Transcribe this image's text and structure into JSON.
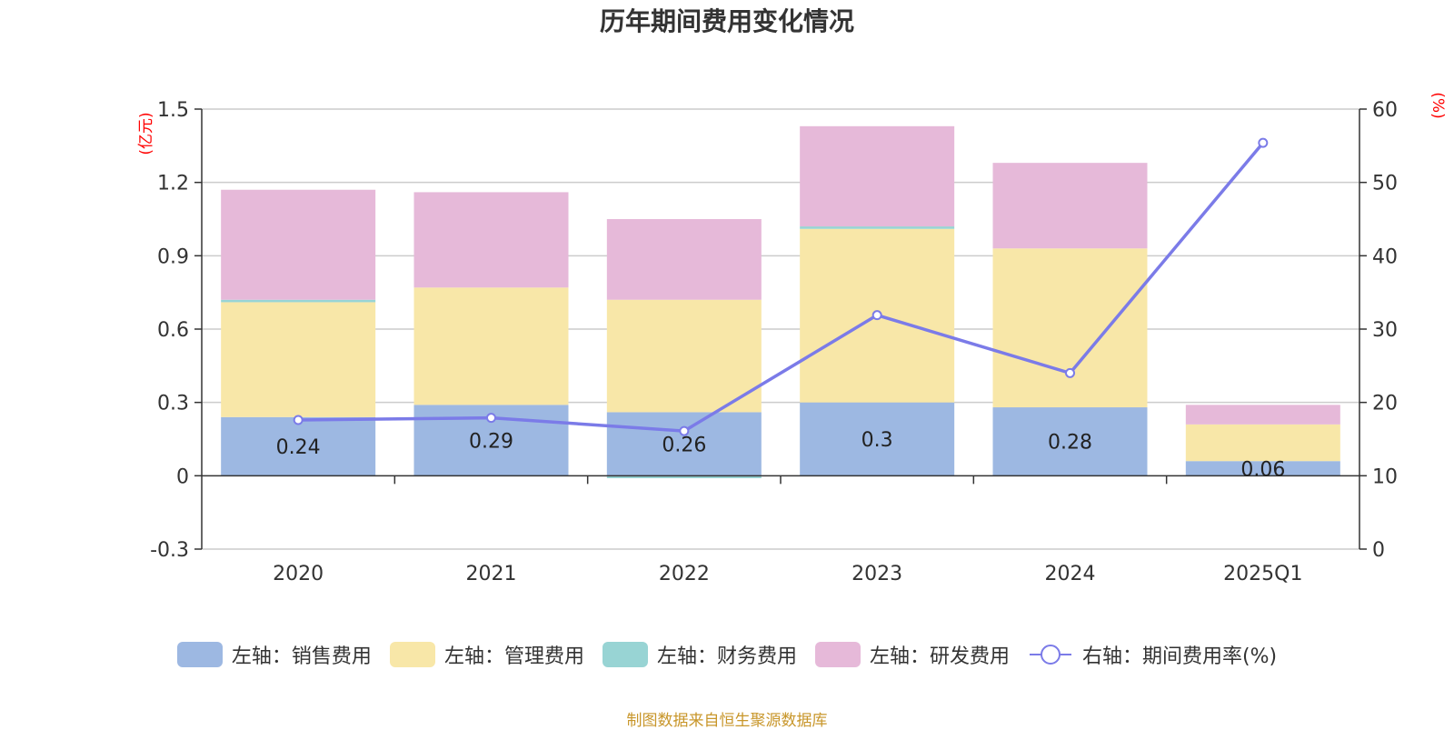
{
  "chart_data": {
    "type": "bar",
    "title": "历年期间费用变化情况",
    "categories": [
      "2020",
      "2021",
      "2022",
      "2023",
      "2024",
      "2025Q1"
    ],
    "left_axis": {
      "unit": "(亿元)",
      "min": -0.3,
      "max": 1.5,
      "ticks": [
        -0.3,
        0,
        0.3,
        0.6,
        0.9,
        1.2,
        1.5
      ],
      "tick_labels": [
        "-0.3",
        "0",
        "0.3",
        "0.6",
        "0.9",
        "1.2",
        "1.5"
      ]
    },
    "right_axis": {
      "unit": "(%)",
      "min": 0,
      "max": 60,
      "ticks": [
        0,
        10,
        20,
        30,
        40,
        50,
        60
      ],
      "tick_labels": [
        "0",
        "10",
        "20",
        "30",
        "40",
        "50",
        "60"
      ]
    },
    "series": [
      {
        "name": "左轴：销售费用",
        "type": "bar",
        "color": "#9db8e2",
        "values": [
          0.24,
          0.29,
          0.26,
          0.3,
          0.28,
          0.06
        ],
        "labels": [
          "0.24",
          "0.29",
          "0.26",
          "0.3",
          "0.28",
          "0.06"
        ]
      },
      {
        "name": "左轴：管理费用",
        "type": "bar",
        "color": "#f8e7a8",
        "values": [
          0.47,
          0.48,
          0.46,
          0.71,
          0.65,
          0.15
        ]
      },
      {
        "name": "左轴：财务费用",
        "type": "bar",
        "color": "#98d4d4",
        "values": [
          0.01,
          0.0,
          -0.01,
          0.01,
          0.0,
          0.0
        ]
      },
      {
        "name": "左轴：研发费用",
        "type": "bar",
        "color": "#e6b9d9",
        "values": [
          0.45,
          0.39,
          0.33,
          0.41,
          0.35,
          0.08
        ]
      },
      {
        "name": "右轴：期间费用率(%)",
        "type": "line",
        "axis": "right",
        "color": "#7b7be8",
        "values": [
          17.6,
          17.9,
          16.1,
          31.9,
          24.0,
          55.4
        ]
      }
    ],
    "grid": true,
    "legend_position": "bottom"
  },
  "source_note": "制图数据来自恒生聚源数据库",
  "colors": {
    "axis_unit": "#ff0000",
    "source_note": "#c8962a",
    "gridline": "#cccccc",
    "text": "#333333"
  }
}
